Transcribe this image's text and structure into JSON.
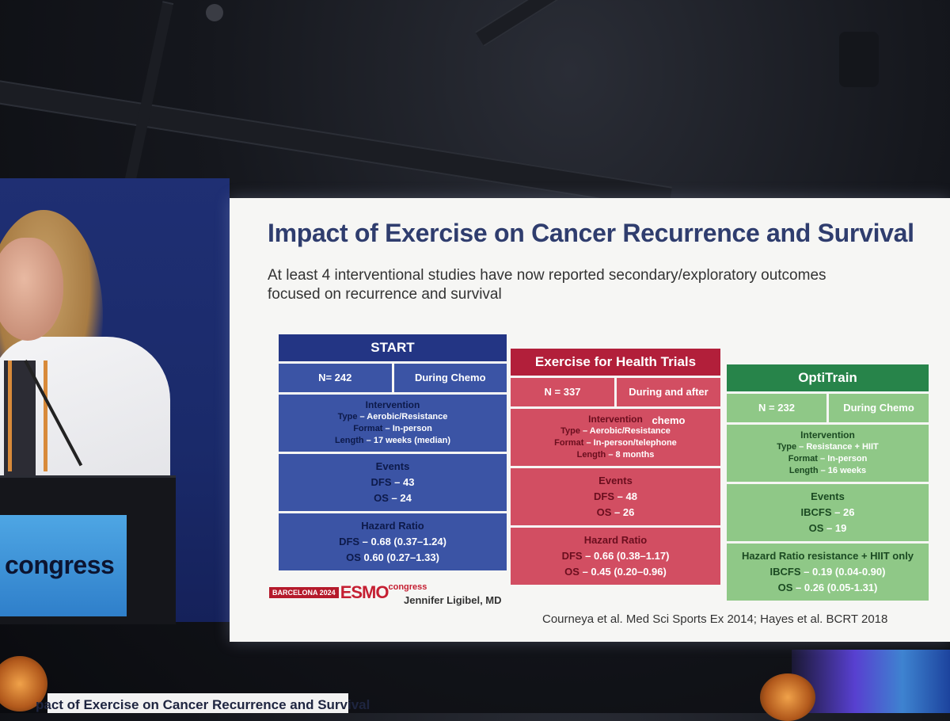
{
  "slide": {
    "title": "Impact of Exercise on Cancer Recurrence and Survival",
    "subtitle": "At least 4 interventional studies have now reported secondary/exploratory outcomes focused on recurrence and survival",
    "panels": [
      {
        "name": "START",
        "n": "N= 242",
        "timing": "During Chemo",
        "intervention_label": "Intervention",
        "intervention": [
          {
            "k": "Type",
            "v": " – Aerobic/Resistance"
          },
          {
            "k": "Format",
            "v": " – In-person"
          },
          {
            "k": "Length",
            "v": " – 17 weeks (median)"
          }
        ],
        "events_label": "Events",
        "events": [
          {
            "k": "DFS",
            "v": " – 43"
          },
          {
            "k": "OS",
            "v": " – 24"
          }
        ],
        "hr_label": "Hazard Ratio",
        "hr": [
          {
            "k": "DFS",
            "v": " – 0.68 (0.37–1.24)"
          },
          {
            "k": "OS",
            "v": " 0.60 (0.27–1.33)"
          }
        ]
      },
      {
        "name": "Exercise for Health Trials",
        "n": "N = 337",
        "timing": "During and after chemo",
        "intervention_label": "Intervention",
        "intervention": [
          {
            "k": "Type",
            "v": " – Aerobic/Resistance"
          },
          {
            "k": "Format",
            "v": " – In-person/telephone"
          },
          {
            "k": "Length",
            "v": " – 8 months"
          }
        ],
        "events_label": "Events",
        "events": [
          {
            "k": "DFS",
            "v": " – 48"
          },
          {
            "k": "OS",
            "v": " – 26"
          }
        ],
        "hr_label": "Hazard Ratio",
        "hr": [
          {
            "k": "DFS",
            "v": " – 0.66 (0.38–1.17)"
          },
          {
            "k": "OS",
            "v": " – 0.45 (0.20–0.96)"
          }
        ]
      },
      {
        "name": "OptiTrain",
        "n": "N = 232",
        "timing": "During Chemo",
        "intervention_label": "Intervention",
        "intervention": [
          {
            "k": "Type",
            "v": " – Resistance + HIIT"
          },
          {
            "k": "Format",
            "v": " – In-person"
          },
          {
            "k": "Length",
            "v": " – 16 weeks"
          }
        ],
        "events_label": "Events",
        "events": [
          {
            "k": "IBCFS",
            "v": " – 26"
          },
          {
            "k": "OS",
            "v": " – 19"
          }
        ],
        "hr_label": "Hazard Ratio resistance + HIIT only",
        "hr": [
          {
            "k": "IBCFS",
            "v": " – 0.19 (0.04-0.90)"
          },
          {
            "k": "OS",
            "v": " – 0.26 (0.05-1.31)"
          }
        ]
      }
    ],
    "logo": {
      "year_box": "BARCELONA 2024",
      "brand": "ESMO",
      "suffix": "congress"
    },
    "speaker": "Jennifer Ligibel, MD",
    "citation": "Courneya et al. Med Sci Sports Ex 2014; Hayes et al. BCRT 2018"
  },
  "stage": {
    "podium_text": "congress",
    "lower_screen_text": "pact of Exercise on Cancer Recurrence and Survival"
  }
}
